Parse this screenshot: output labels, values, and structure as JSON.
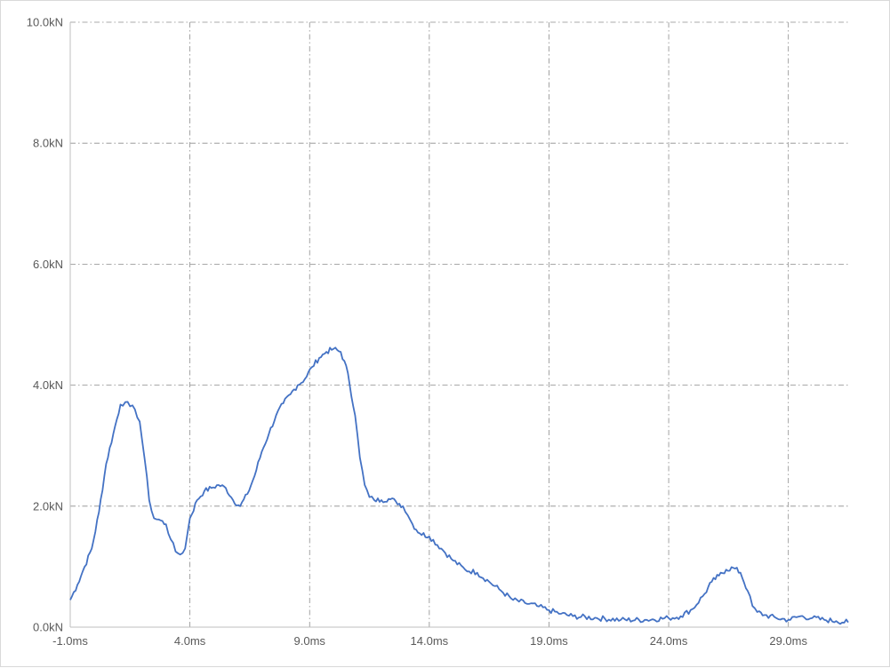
{
  "chart_data": {
    "type": "line",
    "title": "",
    "xlabel": "",
    "ylabel": "",
    "x_unit": "ms",
    "y_unit": "kN",
    "xlim": [
      -1.0,
      31.5
    ],
    "ylim": [
      0.0,
      10.0
    ],
    "x_ticks": [
      -1.0,
      4.0,
      9.0,
      14.0,
      19.0,
      24.0,
      29.0
    ],
    "x_tick_labels": [
      "-1.0ms",
      "4.0ms",
      "9.0ms",
      "14.0ms",
      "19.0ms",
      "24.0ms",
      "29.0ms"
    ],
    "y_ticks": [
      0.0,
      2.0,
      4.0,
      6.0,
      8.0,
      10.0
    ],
    "y_tick_labels": [
      "0.0kN",
      "2.0kN",
      "4.0kN",
      "6.0kN",
      "8.0kN",
      "10.0kN"
    ],
    "grid": true,
    "legend": "none",
    "line_color": "#4472c4",
    "series": [
      {
        "x": [
          -1.0,
          -0.7,
          -0.4,
          -0.1,
          0.2,
          0.5,
          0.8,
          1.1,
          1.3,
          1.5,
          1.7,
          1.9,
          2.1,
          2.3,
          2.5,
          2.7,
          3.0,
          3.2,
          3.4,
          3.6,
          3.8,
          4.0,
          4.3,
          4.6,
          4.9,
          5.2,
          5.5,
          5.8,
          6.1,
          6.4,
          6.7,
          7.0,
          7.3,
          7.6,
          7.9,
          8.2,
          8.5,
          8.8,
          9.1,
          9.4,
          9.7,
          10.0,
          10.3,
          10.6,
          10.9,
          11.1,
          11.3,
          11.5,
          11.7,
          12.0,
          12.3,
          12.6,
          12.9,
          13.1,
          13.3,
          13.6,
          14.0,
          14.5,
          15.0,
          15.5,
          16.0,
          16.5,
          17.0,
          17.5,
          18.0,
          18.5,
          19.0,
          19.5,
          20.0,
          21.0,
          22.0,
          23.0,
          24.0,
          24.5,
          25.0,
          25.5,
          25.8,
          26.1,
          26.4,
          26.7,
          27.0,
          27.3,
          27.5,
          27.7,
          28.0,
          28.5,
          29.0,
          29.5,
          30.0,
          30.5,
          31.0,
          31.5
        ],
        "y": [
          0.45,
          0.7,
          1.0,
          1.3,
          1.9,
          2.7,
          3.2,
          3.68,
          3.72,
          3.65,
          3.6,
          3.4,
          2.8,
          2.1,
          1.8,
          1.78,
          1.7,
          1.45,
          1.25,
          1.2,
          1.3,
          1.8,
          2.1,
          2.25,
          2.3,
          2.35,
          2.3,
          2.1,
          2.0,
          2.2,
          2.5,
          2.9,
          3.2,
          3.5,
          3.7,
          3.85,
          4.0,
          4.1,
          4.3,
          4.45,
          4.55,
          4.6,
          4.55,
          4.2,
          3.5,
          2.8,
          2.35,
          2.15,
          2.1,
          2.1,
          2.12,
          2.08,
          2.0,
          1.85,
          1.7,
          1.55,
          1.5,
          1.3,
          1.1,
          0.95,
          0.9,
          0.75,
          0.6,
          0.45,
          0.4,
          0.35,
          0.28,
          0.22,
          0.18,
          0.15,
          0.12,
          0.12,
          0.15,
          0.18,
          0.3,
          0.55,
          0.75,
          0.85,
          0.95,
          0.98,
          0.9,
          0.6,
          0.35,
          0.25,
          0.2,
          0.15,
          0.12,
          0.18,
          0.15,
          0.12,
          0.1,
          0.08
        ]
      }
    ]
  }
}
